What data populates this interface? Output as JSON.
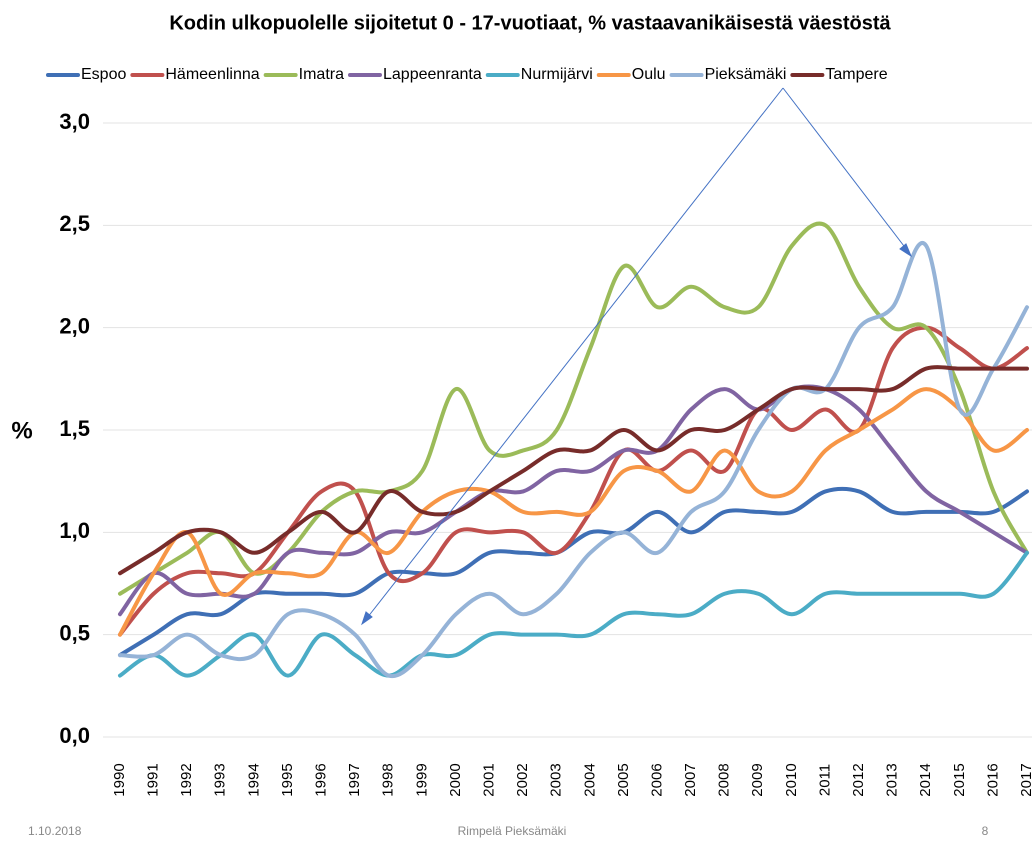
{
  "chart_data": {
    "type": "line",
    "title": "Kodin ulkopuolelle sijoitetut 0 - 17-vuotiaat, % vastaavanikäisestä väestöstä",
    "y_label": "%",
    "categories": [
      "1990",
      "1991",
      "1992",
      "1993",
      "1994",
      "1995",
      "1996",
      "1997",
      "1998",
      "1999",
      "2000",
      "2001",
      "2002",
      "2003",
      "2004",
      "2005",
      "2006",
      "2007",
      "2008",
      "2009",
      "2010",
      "2011",
      "2012",
      "2013",
      "2014",
      "2015",
      "2016",
      "2017"
    ],
    "series": [
      {
        "name": "Espoo",
        "color": "#3f6fb5",
        "values": [
          0.4,
          0.5,
          0.6,
          0.6,
          0.7,
          0.7,
          0.7,
          0.7,
          0.8,
          0.8,
          0.8,
          0.9,
          0.9,
          0.9,
          1.0,
          1.0,
          1.1,
          1.0,
          1.1,
          1.1,
          1.1,
          1.2,
          1.2,
          1.1,
          1.1,
          1.1,
          1.1,
          1.2
        ]
      },
      {
        "name": "Hämeenlinna",
        "color": "#c0504d",
        "values": [
          0.5,
          0.7,
          0.8,
          0.8,
          0.8,
          1.0,
          1.2,
          1.2,
          0.8,
          0.8,
          1.0,
          1.0,
          1.0,
          0.9,
          1.1,
          1.4,
          1.3,
          1.4,
          1.3,
          1.6,
          1.5,
          1.6,
          1.5,
          1.9,
          2.0,
          1.9,
          1.8,
          1.9
        ]
      },
      {
        "name": "Imatra",
        "color": "#9bbb59",
        "values": [
          0.7,
          0.8,
          0.9,
          1.0,
          0.8,
          0.9,
          1.1,
          1.2,
          1.2,
          1.3,
          1.7,
          1.4,
          1.4,
          1.5,
          1.9,
          2.3,
          2.1,
          2.2,
          2.1,
          2.1,
          2.4,
          2.5,
          2.2,
          2.0,
          2.0,
          1.7,
          1.2,
          0.9
        ]
      },
      {
        "name": "Lappeenranta",
        "color": "#8064a2",
        "values": [
          0.6,
          0.8,
          0.7,
          0.7,
          0.7,
          0.9,
          0.9,
          0.9,
          1.0,
          1.0,
          1.1,
          1.2,
          1.2,
          1.3,
          1.3,
          1.4,
          1.4,
          1.6,
          1.7,
          1.6,
          1.7,
          1.7,
          1.6,
          1.4,
          1.2,
          1.1,
          1.0,
          0.9
        ]
      },
      {
        "name": "Nurmijärvi",
        "color": "#4bacc6",
        "values": [
          0.3,
          0.4,
          0.3,
          0.4,
          0.5,
          0.3,
          0.5,
          0.4,
          0.3,
          0.4,
          0.4,
          0.5,
          0.5,
          0.5,
          0.5,
          0.6,
          0.6,
          0.6,
          0.7,
          0.7,
          0.6,
          0.7,
          0.7,
          0.7,
          0.7,
          0.7,
          0.7,
          0.9
        ]
      },
      {
        "name": "Oulu",
        "color": "#f79646",
        "values": [
          0.5,
          0.8,
          1.0,
          0.7,
          0.8,
          0.8,
          0.8,
          1.0,
          0.9,
          1.1,
          1.2,
          1.2,
          1.1,
          1.1,
          1.1,
          1.3,
          1.3,
          1.2,
          1.4,
          1.2,
          1.2,
          1.4,
          1.5,
          1.6,
          1.7,
          1.6,
          1.4,
          1.5
        ]
      },
      {
        "name": "Pieksämäki",
        "color": "#95b3d7",
        "values": [
          0.4,
          0.4,
          0.5,
          0.4,
          0.4,
          0.6,
          0.6,
          0.5,
          0.3,
          0.4,
          0.6,
          0.7,
          0.6,
          0.7,
          0.9,
          1.0,
          0.9,
          1.1,
          1.2,
          1.5,
          1.7,
          1.7,
          2.0,
          2.1,
          2.4,
          1.6,
          1.8,
          2.1
        ]
      },
      {
        "name": "Tampere",
        "color": "#772c2a",
        "values": [
          0.8,
          0.9,
          1.0,
          1.0,
          0.9,
          1.0,
          1.1,
          1.0,
          1.2,
          1.1,
          1.1,
          1.2,
          1.3,
          1.4,
          1.4,
          1.5,
          1.4,
          1.5,
          1.5,
          1.6,
          1.7,
          1.7,
          1.7,
          1.7,
          1.8,
          1.8,
          1.8,
          1.8
        ]
      }
    ],
    "ylim": [
      0,
      3
    ],
    "yticks": [
      {
        "value": 0,
        "label": "0,0"
      },
      {
        "value": 0.5,
        "label": "0,5"
      },
      {
        "value": 1,
        "label": "1,0"
      },
      {
        "value": 1.5,
        "label": "1,5"
      },
      {
        "value": 2,
        "label": "2,0"
      },
      {
        "value": 2.5,
        "label": "2,5"
      },
      {
        "value": 3,
        "label": "3,0"
      }
    ],
    "grid": true,
    "legend": "top"
  },
  "footer": {
    "date": "1.10.2018",
    "author": "Rimpelä Pieksämäki",
    "page": "8"
  }
}
